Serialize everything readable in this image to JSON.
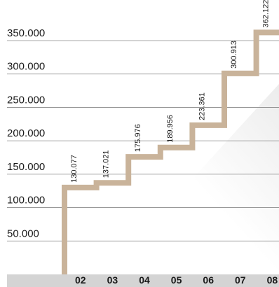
{
  "chart_data": {
    "type": "line",
    "step": true,
    "categories": [
      "02",
      "03",
      "04",
      "05",
      "06",
      "07",
      "08"
    ],
    "values": [
      130077,
      137021,
      175976,
      189956,
      223361,
      300913,
      362122
    ],
    "value_labels": [
      "130.077",
      "137.021",
      "175.976",
      "189.956",
      "223.361",
      "300.913",
      "362.122"
    ],
    "yticks": [
      50000,
      100000,
      150000,
      200000,
      250000,
      300000,
      350000
    ],
    "ytick_labels": [
      "50.000",
      "100.000",
      "150.000",
      "200.000",
      "250.000",
      "300.000",
      "350.000"
    ],
    "ylim": [
      0,
      380000
    ],
    "grid": true,
    "title": "",
    "xlabel": "",
    "ylabel": "",
    "line_color": "#c9b39a",
    "axis_band_color": "#d4d4d4",
    "grid_color": "#8a8a8a"
  }
}
